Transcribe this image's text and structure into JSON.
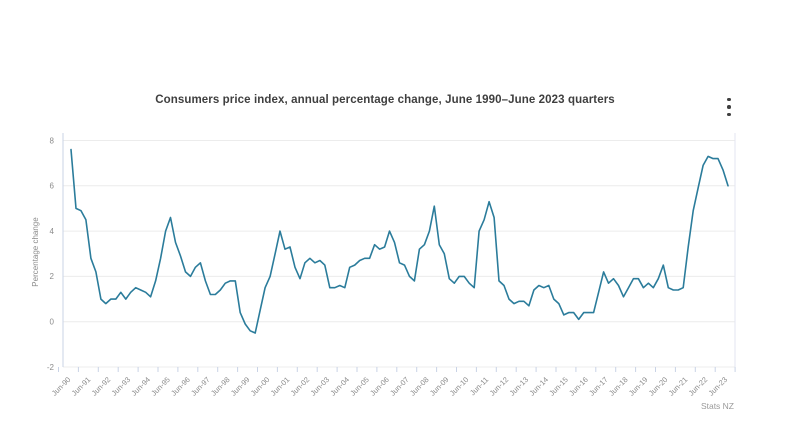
{
  "chart": {
    "title": "Consumers price index, annual percentage change, June 1990–June 2023 quarters",
    "menu_icon": "kebab-menu-icon",
    "source": "Stats NZ",
    "ylabel": "Percentage change",
    "colors": {
      "line": "#2b7c9b",
      "grid": "#ececec",
      "axis": "#c9d3e6",
      "right_border": "#e3e6f0",
      "tick_text": "#8b8b8b",
      "title_text": "#3f3f3f",
      "source_text": "#9a9a9a",
      "menu_icon": "#3f3f3f"
    }
  },
  "chart_data": {
    "type": "line",
    "title": "Consumers price index, annual percentage change, June 1990–June 2023 quarters",
    "xlabel": "",
    "ylabel": "Percentage change",
    "ylim": [
      -2,
      8
    ],
    "y_ticks": [
      8,
      6,
      4,
      2,
      0,
      -2
    ],
    "grid": true,
    "legend": false,
    "frequency": "quarterly",
    "first_quarter": "Jun-1990",
    "last_quarter": "Jun-2023",
    "x_tick_labels": [
      "Jun-90",
      "Jun-91",
      "Jun-92",
      "Jun-93",
      "Jun-94",
      "Jun-95",
      "Jun-96",
      "Jun-97",
      "Jun-98",
      "Jun-99",
      "Jun-00",
      "Jun-01",
      "Jun-02",
      "Jun-03",
      "Jun-04",
      "Jun-05",
      "Jun-06",
      "Jun-07",
      "Jun-08",
      "Jun-09",
      "Jun-10",
      "Jun-11",
      "Jun-12",
      "Jun-13",
      "Jun-14",
      "Jun-15",
      "Jun-16",
      "Jun-17",
      "Jun-18",
      "Jun-19",
      "Jun-20",
      "Jun-21",
      "Jun-22",
      "Jun-23"
    ],
    "values": [
      7.6,
      5.0,
      4.9,
      4.5,
      2.8,
      2.2,
      1.0,
      0.8,
      1.0,
      1.0,
      1.3,
      1.0,
      1.3,
      1.5,
      1.4,
      1.3,
      1.1,
      1.8,
      2.8,
      4.0,
      4.6,
      3.5,
      2.9,
      2.2,
      2.0,
      2.4,
      2.6,
      1.8,
      1.2,
      1.2,
      1.4,
      1.7,
      1.8,
      1.8,
      0.4,
      -0.1,
      -0.4,
      -0.5,
      0.5,
      1.5,
      2.0,
      3.0,
      4.0,
      3.2,
      3.3,
      2.4,
      1.9,
      2.6,
      2.8,
      2.6,
      2.7,
      2.5,
      1.5,
      1.5,
      1.6,
      1.5,
      2.4,
      2.5,
      2.7,
      2.8,
      2.8,
      3.4,
      3.2,
      3.3,
      4.0,
      3.5,
      2.6,
      2.5,
      2.0,
      1.8,
      3.2,
      3.4,
      4.0,
      5.1,
      3.4,
      3.0,
      1.9,
      1.7,
      2.0,
      2.0,
      1.7,
      1.5,
      4.0,
      4.5,
      5.3,
      4.6,
      1.8,
      1.6,
      1.0,
      0.8,
      0.9,
      0.9,
      0.7,
      1.4,
      1.6,
      1.5,
      1.6,
      1.0,
      0.8,
      0.3,
      0.4,
      0.4,
      0.1,
      0.4,
      0.4,
      0.4,
      1.3,
      2.2,
      1.7,
      1.9,
      1.6,
      1.1,
      1.5,
      1.9,
      1.9,
      1.5,
      1.7,
      1.5,
      1.9,
      2.5,
      1.5,
      1.4,
      1.4,
      1.5,
      3.3,
      4.9,
      5.9,
      6.9,
      7.3,
      7.2,
      7.2,
      6.7,
      6.0
    ]
  }
}
